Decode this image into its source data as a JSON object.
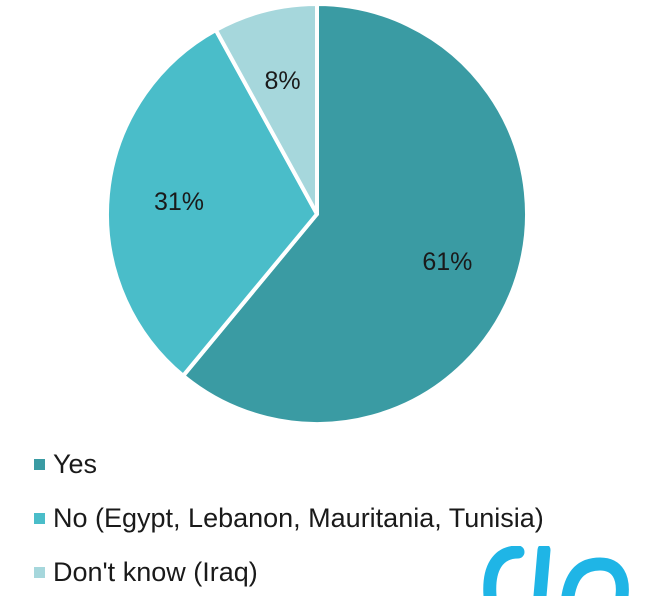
{
  "chart_data": {
    "type": "pie",
    "title": "",
    "categories": [
      "Yes",
      "No (Egypt, Lebanon, Mauritania, Tunisia)",
      "Don't know (Iraq)"
    ],
    "values": [
      61,
      31,
      8
    ],
    "data_labels": [
      "61%",
      "31%",
      "8%"
    ],
    "colors": [
      "#3a9ba3",
      "#4abdc9",
      "#a6d7dc"
    ],
    "start_angle_deg": 0,
    "direction": "clockwise",
    "legend_position": "bottom-left"
  },
  "legend": {
    "items": [
      {
        "label": "Yes",
        "color": "#3a9ba3"
      },
      {
        "label": "No (Egypt, Lebanon, Mauritania, Tunisia)",
        "color": "#4abdc9"
      },
      {
        "label": "Don't know (Iraq)",
        "color": "#a6d7dc"
      }
    ]
  },
  "watermark": {
    "color": "#1fb5e6"
  }
}
